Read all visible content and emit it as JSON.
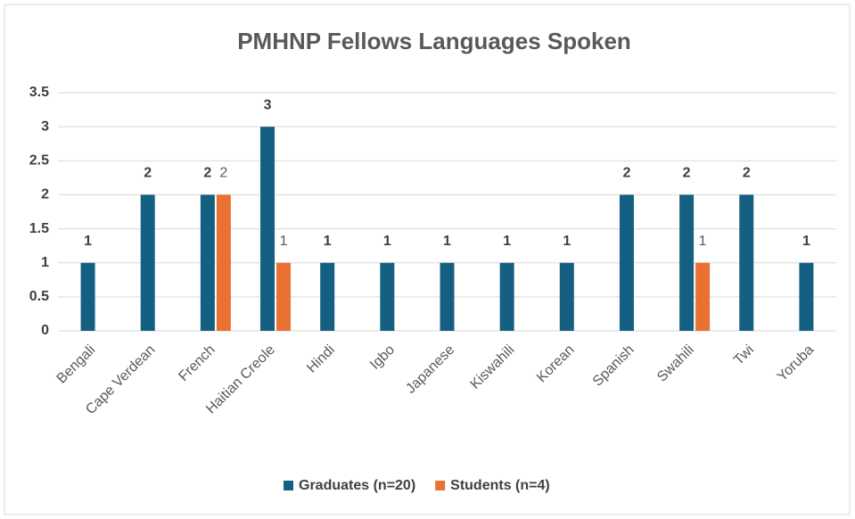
{
  "chart_data": {
    "type": "bar",
    "title": "PMHNP Fellows Languages Spoken",
    "categories": [
      "Bengali",
      "Cape Verdean",
      "French",
      "Haitian Creole",
      "Hindi",
      "Igbo",
      "Japanese",
      "Kiswahili",
      "Korean",
      "Spanish",
      "Swahili",
      "Twi",
      "Yoruba"
    ],
    "series": [
      {
        "name": "Graduates (n=20)",
        "color": "#156082",
        "values": [
          1,
          2,
          2,
          3,
          1,
          1,
          1,
          1,
          1,
          2,
          2,
          2,
          1
        ]
      },
      {
        "name": "Students (n=4)",
        "color": "#e97132",
        "values": [
          null,
          null,
          2,
          1,
          null,
          null,
          null,
          null,
          null,
          null,
          1,
          null,
          null
        ]
      }
    ],
    "ylim": [
      0,
      3.5
    ],
    "yticks": [
      0,
      0.5,
      1,
      1.5,
      2,
      2.5,
      3,
      3.5
    ],
    "grid": true,
    "legend": "bottom"
  }
}
